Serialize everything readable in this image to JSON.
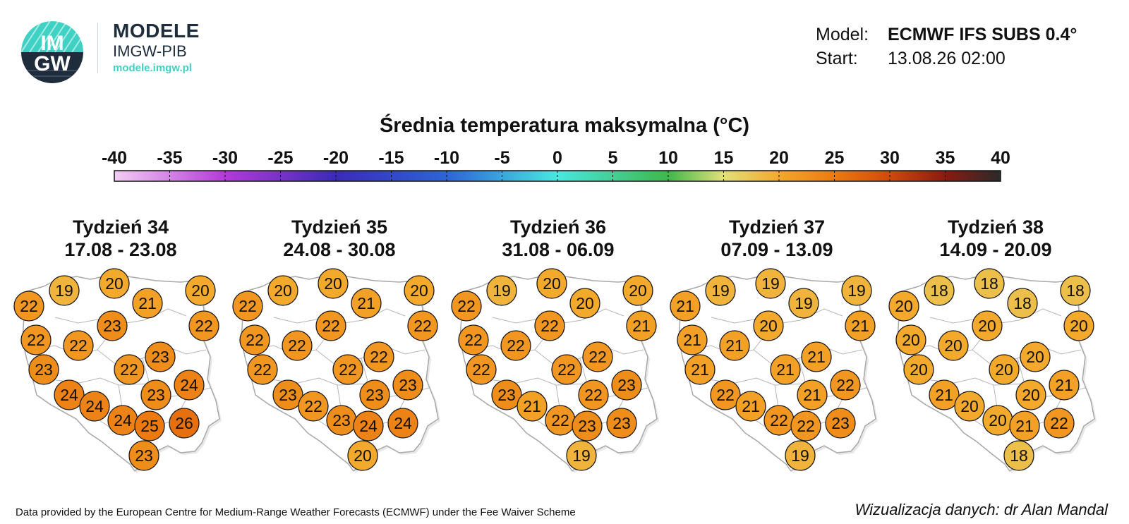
{
  "logo": {
    "mark_top": "IM",
    "mark_bottom": "GW",
    "name": "MODELE",
    "org": "IMGW-PIB",
    "url": "modele.imgw.pl",
    "colors": {
      "teal": "#3fd1c4",
      "navy": "#1f2c3b"
    }
  },
  "meta": {
    "model_label": "Model:",
    "model_value": "ECMWF IFS SUBS 0.4°",
    "start_label": "Start:",
    "start_value": "13.08.26 02:00"
  },
  "legend": {
    "title": "Średnia temperatura maksymalna (°C)",
    "ticks": [
      -40,
      -35,
      -30,
      -25,
      -20,
      -15,
      -10,
      -5,
      0,
      5,
      10,
      15,
      20,
      25,
      30,
      35,
      40
    ],
    "colormap": [
      {
        "value": -40,
        "color": "#f3cdf3"
      },
      {
        "value": -30,
        "color": "#b43ad8"
      },
      {
        "value": -20,
        "color": "#3a2ab8"
      },
      {
        "value": -10,
        "color": "#2d64d8"
      },
      {
        "value": 0,
        "color": "#47e8e0"
      },
      {
        "value": 10,
        "color": "#3fb84a"
      },
      {
        "value": 15,
        "color": "#e2e07a"
      },
      {
        "value": 20,
        "color": "#f3a92c"
      },
      {
        "value": 25,
        "color": "#ec7a10"
      },
      {
        "value": 30,
        "color": "#d04a0c"
      },
      {
        "value": 35,
        "color": "#8a1a10"
      },
      {
        "value": 40,
        "color": "#2a2a2a"
      }
    ]
  },
  "weeks": [
    {
      "title": "Tydzień 34",
      "range": "17.08 - 23.08",
      "values": [
        19,
        20,
        20,
        22,
        21,
        23,
        22,
        22,
        22,
        23,
        23,
        22,
        24,
        24,
        23,
        24,
        24,
        25,
        26,
        23
      ]
    },
    {
      "title": "Tydzień 35",
      "range": "24.08 - 30.08",
      "values": [
        20,
        20,
        20,
        22,
        21,
        22,
        22,
        22,
        22,
        22,
        22,
        22,
        23,
        23,
        23,
        22,
        23,
        24,
        24,
        20
      ]
    },
    {
      "title": "Tydzień 36",
      "range": "31.08 - 06.09",
      "values": [
        19,
        20,
        20,
        22,
        20,
        22,
        21,
        22,
        22,
        22,
        22,
        22,
        23,
        23,
        22,
        21,
        22,
        23,
        23,
        19
      ]
    },
    {
      "title": "Tydzień 37",
      "range": "07.09 - 13.09",
      "values": [
        19,
        19,
        19,
        21,
        19,
        20,
        21,
        21,
        21,
        21,
        21,
        21,
        22,
        22,
        21,
        21,
        22,
        22,
        23,
        19
      ]
    },
    {
      "title": "Tydzień 38",
      "range": "14.09 - 20.09",
      "values": [
        18,
        18,
        18,
        20,
        18,
        20,
        20,
        20,
        20,
        20,
        20,
        20,
        21,
        21,
        20,
        20,
        20,
        21,
        22,
        18
      ]
    }
  ],
  "footer": {
    "attribution": "Data provided by the European Centre for Medium-Range Weather Forecasts (ECMWF) under the Fee Waiver Scheme",
    "credit": "Wizualizacja danych: dr Alan Mandal"
  }
}
